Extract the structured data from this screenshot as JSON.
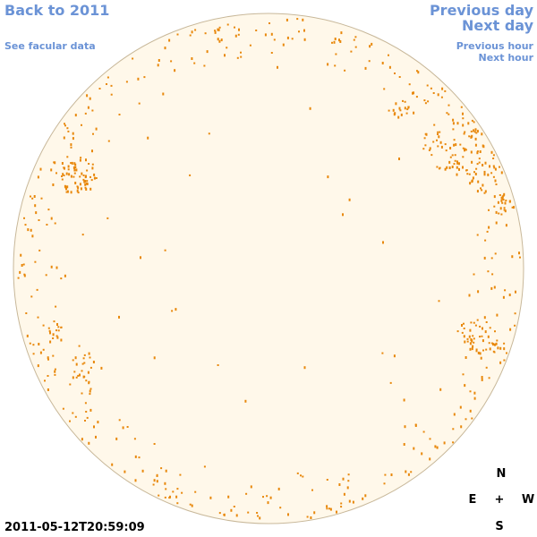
{
  "nav": {
    "back_label": "Back to 2011",
    "facular_label": "See facular data",
    "prev_day_label": "Previous day",
    "next_day_label": "Next day",
    "prev_hour_label": "Previous hour",
    "next_hour_label": "Next hour"
  },
  "timestamp": "2011-05-12T20:59:09",
  "compass": {
    "north": "N",
    "east": "E",
    "center": "+",
    "west": "W",
    "south": "S"
  },
  "colors": {
    "link": "#6b93d6",
    "disk_fill": "#fff8ea",
    "disk_outline": "#c8b89a",
    "facula": "#e8880c"
  },
  "icons": {
    "compass_center": "plus-icon"
  }
}
